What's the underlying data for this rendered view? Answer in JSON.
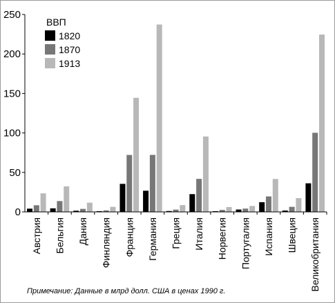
{
  "chart_data": {
    "type": "bar",
    "title": "",
    "xlabel": "",
    "ylabel": "",
    "legend_title": "ВВП",
    "legend_position": "top-left",
    "ylim": [
      0,
      250
    ],
    "yticks": [
      0,
      50,
      100,
      150,
      200,
      250
    ],
    "grid": false,
    "categories": [
      "Австрия",
      "Бельгия",
      "Дания",
      "Финляндия",
      "Франция",
      "Германия",
      "Греция",
      "Италия",
      "Норвегия",
      "Португалия",
      "Испания",
      "Швеция",
      "Великобритания"
    ],
    "series": [
      {
        "name": "1820",
        "color": "#000000",
        "values": [
          4.1,
          4.5,
          1.5,
          0.9,
          35.5,
          26.8,
          1.1,
          22.5,
          0.9,
          3.0,
          12.3,
          1.7,
          36.2
        ]
      },
      {
        "name": "1870",
        "color": "#777777",
        "values": [
          8.4,
          13.7,
          3.8,
          1.9,
          72.1,
          72.2,
          2.9,
          41.8,
          2.5,
          4.2,
          19.6,
          6.4,
          100.2
        ]
      },
      {
        "name": "1913",
        "color": "#b8b8b8",
        "values": [
          23.5,
          32.3,
          11.7,
          6.4,
          144.5,
          237.3,
          8.6,
          95.5,
          6.1,
          7.5,
          41.7,
          17.4,
          224.6
        ]
      }
    ]
  },
  "note": "Примечание: Данные в млрд долл. США в ценах 1990 г."
}
